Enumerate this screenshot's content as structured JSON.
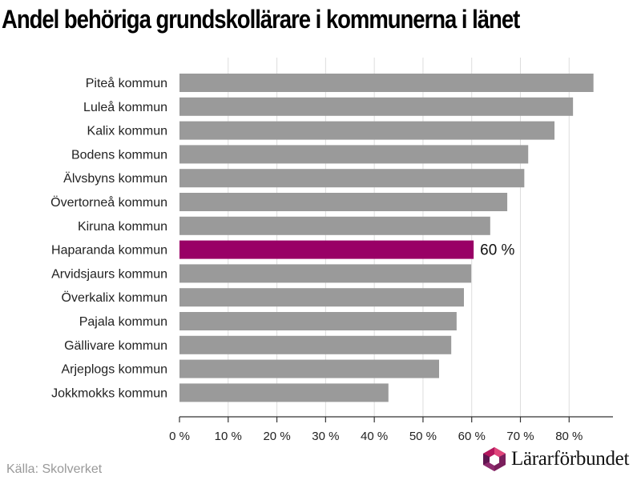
{
  "title": "Andel behöriga grundskollärare i kommunerna i länet",
  "source": "Källa: Skolverket",
  "logo_text": "Lärarförbundet",
  "colors": {
    "bar": "#9a9a9a",
    "highlight": "#990066",
    "grid": "#dddddd",
    "axis": "#333333"
  },
  "chart_data": {
    "type": "bar",
    "orientation": "horizontal",
    "categories": [
      "Piteå kommun",
      "Luleå kommun",
      "Kalix kommun",
      "Bodens kommun",
      "Älvsbyns kommun",
      "Övertorneå kommun",
      "Kiruna kommun",
      "Haparanda kommun",
      "Arvidsjaurs kommun",
      "Överkalix kommun",
      "Pajala kommun",
      "Gällivare kommun",
      "Arjeplogs kommun",
      "Jokkmokks kommun"
    ],
    "values": [
      85,
      80.8,
      77,
      71.6,
      70.8,
      67.3,
      63.8,
      60.4,
      59.9,
      58.4,
      56.9,
      55.8,
      53.3,
      42.9
    ],
    "highlight_index": 7,
    "highlight_label": "60 %",
    "xlim": [
      0,
      89
    ],
    "xticks": [
      0,
      10,
      20,
      30,
      40,
      50,
      60,
      70,
      80
    ],
    "xtick_labels": [
      "0 %",
      "10 %",
      "20 %",
      "30 %",
      "40 %",
      "50 %",
      "60 %",
      "70 %",
      "80 %"
    ],
    "grid": true
  }
}
